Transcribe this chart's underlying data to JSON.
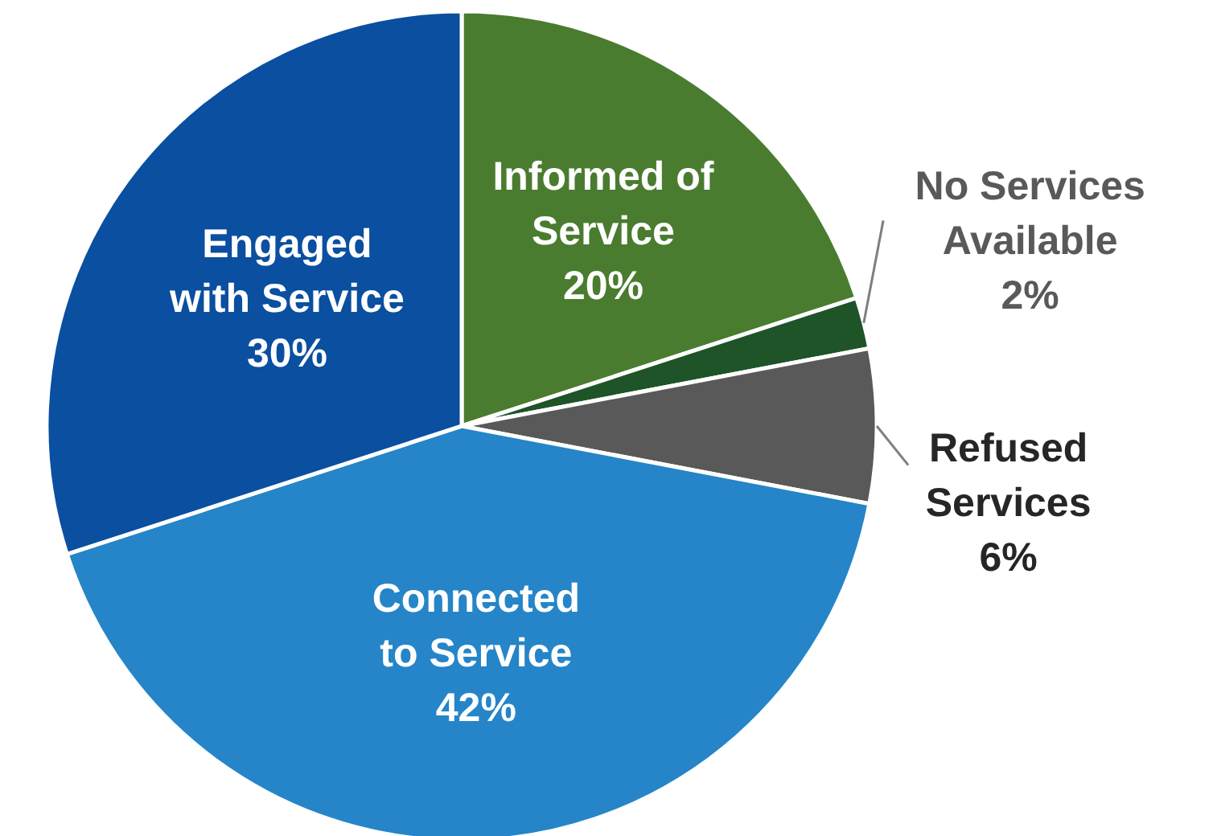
{
  "chart_data": {
    "type": "pie",
    "categories": [
      "Informed of Service",
      "No Services Available",
      "Refused Services",
      "Connected to Service",
      "Engaged with Service"
    ],
    "values": [
      20,
      2,
      6,
      42,
      30
    ],
    "value_labels": [
      "20%",
      "2%",
      "6%",
      "42%",
      "30%"
    ],
    "colors": [
      "#4a7c2f",
      "#1e5428",
      "#595959",
      "#2585c8",
      "#0a4fa0"
    ]
  }
}
